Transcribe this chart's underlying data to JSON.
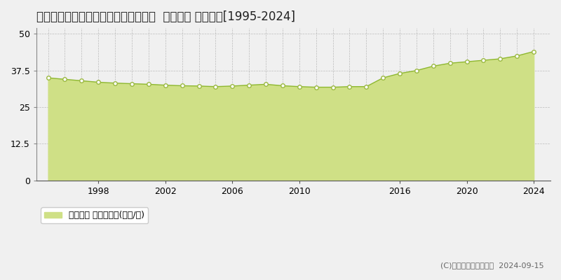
{
  "title": "愛知県豊田市平和町５丁目２０番６外  地価公示 地価推移[1995-2024]",
  "years": [
    1995,
    1996,
    1997,
    1998,
    1999,
    2000,
    2001,
    2002,
    2003,
    2004,
    2005,
    2006,
    2007,
    2008,
    2009,
    2010,
    2011,
    2012,
    2013,
    2014,
    2015,
    2016,
    2017,
    2018,
    2019,
    2020,
    2021,
    2022,
    2023,
    2024
  ],
  "values": [
    35.0,
    34.5,
    34.0,
    33.5,
    33.2,
    33.0,
    32.8,
    32.5,
    32.3,
    32.2,
    32.0,
    32.2,
    32.5,
    32.8,
    32.3,
    32.0,
    31.8,
    31.8,
    32.0,
    32.0,
    35.0,
    36.5,
    37.5,
    39.0,
    40.0,
    40.5,
    41.0,
    41.5,
    42.5,
    44.0
  ],
  "fill_color": "#cfe086",
  "line_color": "#8eb830",
  "marker_color": "#ffffff",
  "marker_edge_color": "#9ab840",
  "background_color": "#f0f0f0",
  "plot_bg_color": "#f0f0f0",
  "grid_color": "#bbbbbb",
  "yticks": [
    0,
    12.5,
    25,
    37.5,
    50
  ],
  "ylim": [
    0,
    52
  ],
  "xlim_start": 1994.3,
  "xlim_end": 2025.0,
  "xticks": [
    1998,
    2002,
    2006,
    2010,
    2016,
    2020,
    2024
  ],
  "xlabel_ticks": [
    "1998",
    "2002",
    "2006",
    "2010",
    "2016",
    "2020",
    "2024"
  ],
  "legend_label": "地価公示 平均坪単価(万円/坪)",
  "copyright_text": "(C)土地価格ドットコム  2024-09-15",
  "title_fontsize": 12,
  "tick_fontsize": 9,
  "legend_fontsize": 9,
  "copyright_fontsize": 8
}
